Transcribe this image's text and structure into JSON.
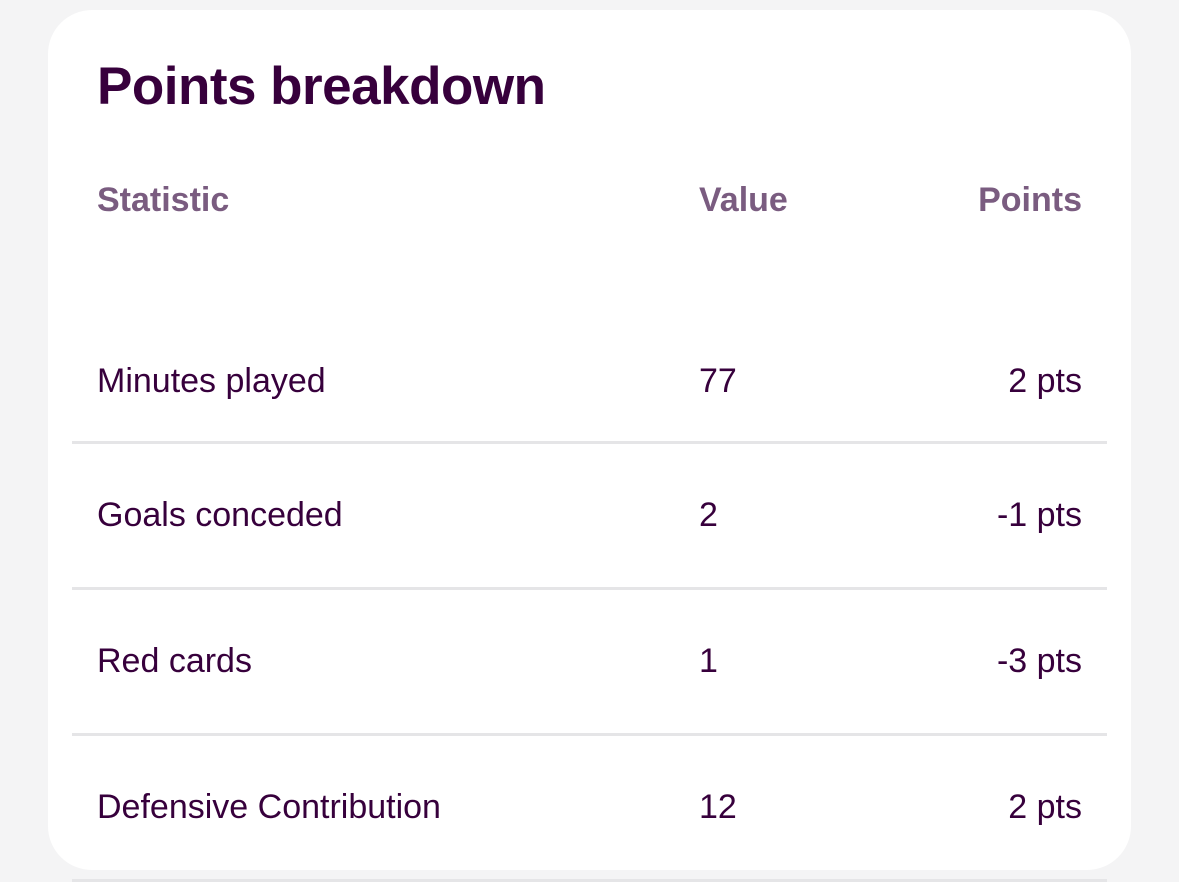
{
  "card": {
    "title": "Points breakdown"
  },
  "table": {
    "headers": {
      "statistic": "Statistic",
      "value": "Value",
      "points": "Points"
    },
    "rows": [
      {
        "statistic": "Minutes played",
        "value": "77",
        "points": "2 pts"
      },
      {
        "statistic": "Goals conceded",
        "value": "2",
        "points": "-1 pts"
      },
      {
        "statistic": "Red cards",
        "value": "1",
        "points": "-3 pts"
      },
      {
        "statistic": "Defensive Contribution",
        "value": "12",
        "points": "2 pts"
      }
    ]
  }
}
